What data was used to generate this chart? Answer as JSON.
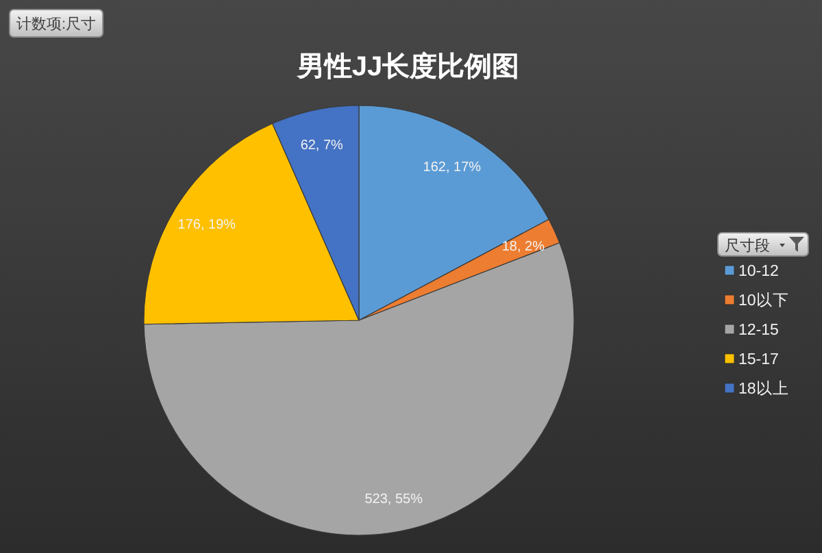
{
  "chart_data": {
    "type": "pie",
    "title": "男性JJ长度比例图",
    "legend_title": "尺寸段",
    "annotations": [
      "计数项:尺寸"
    ],
    "categories": [
      "10-12",
      "10以下",
      "12-15",
      "15-17",
      "18以上"
    ],
    "values": [
      162,
      18,
      523,
      176,
      62
    ],
    "colors": [
      "#5b9bd5",
      "#ed7d31",
      "#a5a5a5",
      "#ffc000",
      "#4472c4"
    ],
    "value_labels": [
      "162, 17%",
      "18, 2%",
      "523, 55%",
      "176, 19%",
      "62, 7%"
    ],
    "legend": "right"
  }
}
